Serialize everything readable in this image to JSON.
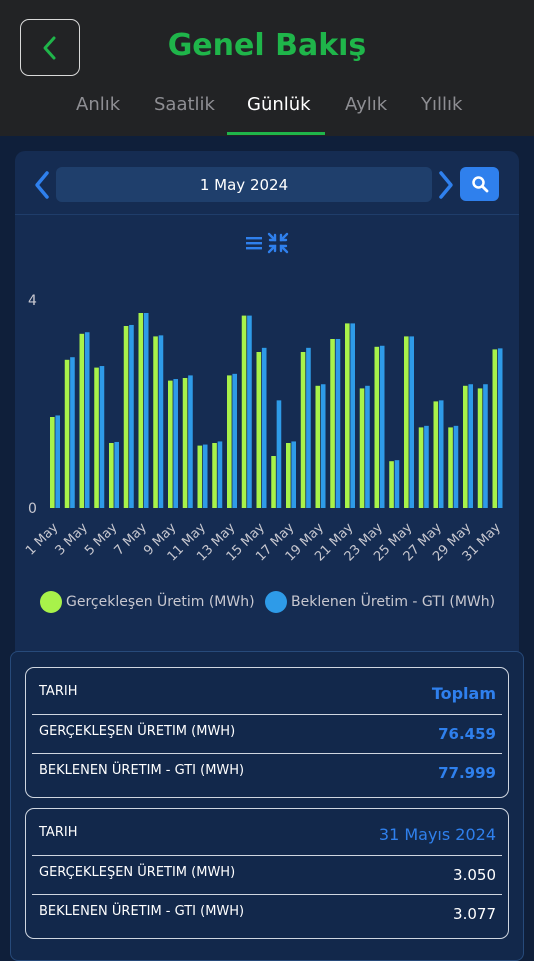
{
  "header": {
    "title": "Genel Bakış",
    "tabs": [
      {
        "label": "Anlık",
        "active": false
      },
      {
        "label": "Saatlik",
        "active": false
      },
      {
        "label": "Günlük",
        "active": true
      },
      {
        "label": "Aylık",
        "active": false
      },
      {
        "label": "Yıllık",
        "active": false
      }
    ]
  },
  "date_picker": {
    "value": "1 May 2024"
  },
  "colors": {
    "actual": "#a8f24a",
    "expected": "#2e9be8",
    "accent": "#2f80ed",
    "brand": "#1fb54a"
  },
  "chart_data": {
    "type": "bar",
    "categories": [
      "1 May",
      "2 May",
      "3 May",
      "4 May",
      "5 May",
      "6 May",
      "7 May",
      "8 May",
      "9 May",
      "10 May",
      "11 May",
      "12 May",
      "13 May",
      "14 May",
      "15 May",
      "16 May",
      "17 May",
      "18 May",
      "19 May",
      "20 May",
      "21 May",
      "22 May",
      "23 May",
      "24 May",
      "25 May",
      "26 May",
      "27 May",
      "28 May",
      "29 May",
      "30 May",
      "31 May"
    ],
    "tick_labels": [
      "1 May",
      "3 May",
      "5 May",
      "7 May",
      "9 May",
      "11 May",
      "13 May",
      "15 May",
      "17 May",
      "19 May",
      "21 May",
      "23 May",
      "25 May",
      "27 May",
      "29 May",
      "31 May"
    ],
    "series": [
      {
        "name": "Gerçekleşen Üretim (MWh)",
        "values": [
          1.75,
          2.85,
          3.35,
          2.7,
          1.25,
          3.5,
          3.75,
          3.3,
          2.45,
          2.5,
          1.2,
          1.25,
          2.55,
          3.7,
          3.0,
          1.0,
          1.25,
          3.0,
          2.35,
          3.25,
          3.55,
          2.3,
          3.1,
          0.9,
          3.3,
          1.55,
          2.05,
          1.55,
          2.35,
          2.3,
          3.05
        ]
      },
      {
        "name": "Beklenen Üretim - GTI (MWh)",
        "values": [
          1.78,
          2.9,
          3.38,
          2.73,
          1.27,
          3.52,
          3.75,
          3.32,
          2.48,
          2.55,
          1.22,
          1.28,
          2.58,
          3.7,
          3.08,
          2.07,
          1.28,
          3.08,
          2.38,
          3.25,
          3.55,
          2.35,
          3.12,
          0.92,
          3.3,
          1.58,
          2.07,
          1.58,
          2.38,
          2.38,
          3.07
        ]
      }
    ],
    "y_ticks": [
      0,
      4
    ],
    "ylim": [
      0,
      4
    ]
  },
  "legend": [
    {
      "label": "Gerçekleşen Üretim (MWh)"
    },
    {
      "label": "Beklenen Üretim - GTI (MWh)"
    }
  ],
  "summary_total": {
    "header_key": "TARIH",
    "header_val": "Toplam",
    "rows": [
      {
        "key": "GERÇEKLEŞEN ÜRETIM (MWH)",
        "val": "76.459"
      },
      {
        "key": "BEKLENEN ÜRETIM - GTI (MWH)",
        "val": "77.999"
      }
    ]
  },
  "summary_day": {
    "header_key": "TARIH",
    "header_val": "31 Mayıs 2024",
    "rows": [
      {
        "key": "GERÇEKLEŞEN ÜRETIM (MWH)",
        "val": "3.050"
      },
      {
        "key": "BEKLENEN ÜRETIM - GTI (MWH)",
        "val": "3.077"
      }
    ]
  }
}
